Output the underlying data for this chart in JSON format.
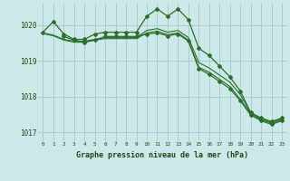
{
  "title": "Graphe pression niveau de la mer (hPa)",
  "background_color": "#cce8e8",
  "grid_color": "#aacccc",
  "line_color": "#2d6e2d",
  "text_color": "#1a4a1a",
  "xlim": [
    -0.5,
    23.5
  ],
  "ylim": [
    1016.75,
    1020.6
  ],
  "xticks": [
    0,
    1,
    2,
    3,
    4,
    5,
    6,
    7,
    8,
    9,
    10,
    11,
    12,
    13,
    14,
    15,
    16,
    17,
    18,
    19,
    20,
    21,
    22,
    23
  ],
  "yticks": [
    1017,
    1018,
    1019,
    1020
  ],
  "series": [
    {
      "x": [
        0,
        1,
        2,
        3,
        4,
        5,
        6,
        7,
        8,
        9,
        10,
        11,
        12,
        13,
        14,
        15,
        16,
        17,
        18,
        19,
        20,
        21,
        22,
        23
      ],
      "y": [
        1019.8,
        1020.1,
        1019.75,
        1019.6,
        1019.6,
        1019.75,
        1019.8,
        1019.8,
        1019.8,
        1019.8,
        1020.25,
        1020.45,
        1020.25,
        1020.45,
        1020.15,
        1019.35,
        1019.15,
        1018.85,
        1018.55,
        1018.15,
        1017.55,
        1017.4,
        1017.3,
        1017.4
      ],
      "marker": "D",
      "markersize": 2.0,
      "linewidth": 0.9,
      "has_marker": true
    },
    {
      "x": [
        0,
        1,
        2,
        3,
        4,
        5,
        6,
        7,
        8,
        9,
        10,
        11,
        12,
        13,
        14,
        15,
        16,
        17,
        18,
        19,
        20,
        21,
        22,
        23
      ],
      "y": [
        1019.78,
        1019.72,
        1019.6,
        1019.55,
        1019.55,
        1019.6,
        1019.65,
        1019.65,
        1019.65,
        1019.65,
        1019.85,
        1019.9,
        1019.8,
        1019.85,
        1019.65,
        1018.95,
        1018.8,
        1018.6,
        1018.4,
        1018.05,
        1017.55,
        1017.38,
        1017.28,
        1017.38
      ],
      "marker": null,
      "markersize": 0,
      "linewidth": 0.8,
      "has_marker": false
    },
    {
      "x": [
        0,
        1,
        2,
        3,
        4,
        5,
        6,
        7,
        8,
        9,
        10,
        11,
        12,
        13,
        14,
        15,
        16,
        17,
        18,
        19,
        20,
        21,
        22,
        23
      ],
      "y": [
        1019.76,
        1019.7,
        1019.58,
        1019.52,
        1019.52,
        1019.58,
        1019.62,
        1019.62,
        1019.62,
        1019.62,
        1019.78,
        1019.83,
        1019.73,
        1019.78,
        1019.58,
        1018.82,
        1018.68,
        1018.48,
        1018.28,
        1017.92,
        1017.52,
        1017.35,
        1017.25,
        1017.35
      ],
      "marker": null,
      "markersize": 0,
      "linewidth": 0.8,
      "has_marker": false
    },
    {
      "x": [
        2,
        3,
        4,
        5,
        6,
        7,
        8,
        9,
        10,
        11,
        12,
        13,
        14,
        15,
        16,
        17,
        18,
        19,
        20,
        21,
        22,
        23
      ],
      "y": [
        1019.68,
        1019.58,
        1019.52,
        1019.58,
        1019.68,
        1019.68,
        1019.68,
        1019.68,
        1019.75,
        1019.78,
        1019.7,
        1019.75,
        1019.55,
        1018.78,
        1018.62,
        1018.42,
        1018.22,
        1017.88,
        1017.48,
        1017.32,
        1017.22,
        1017.32
      ],
      "marker": "D",
      "markersize": 2.0,
      "linewidth": 0.9,
      "has_marker": true
    }
  ]
}
